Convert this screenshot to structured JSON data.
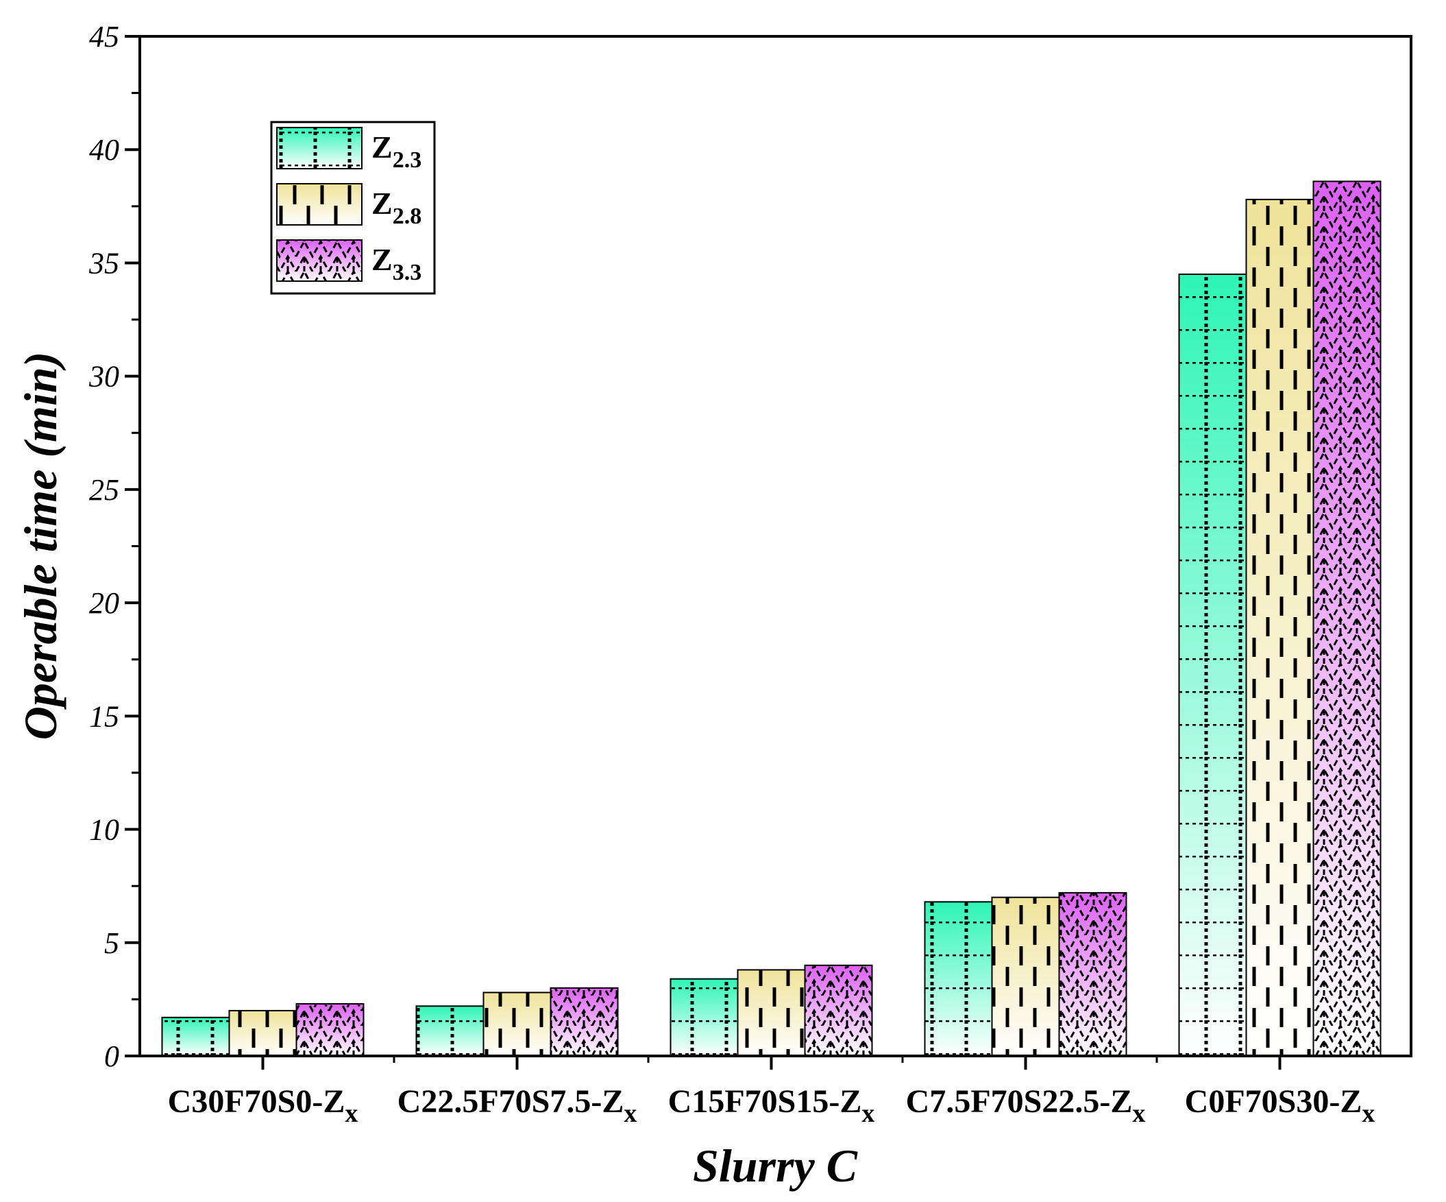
{
  "chart_data": {
    "type": "bar",
    "title": "",
    "xlabel": "Slurry C",
    "ylabel": "Operable time (min)",
    "ylim": [
      0,
      45
    ],
    "yticks": [
      0,
      5,
      10,
      15,
      20,
      25,
      30,
      35,
      40,
      45
    ],
    "categories": [
      {
        "base": "C30F70S0-Z",
        "sub": "x"
      },
      {
        "base": "C22.5F70S7.5-Z",
        "sub": "x"
      },
      {
        "base": "C15F70S15-Z",
        "sub": "x"
      },
      {
        "base": "C7.5F70S22.5-Z",
        "sub": "x"
      },
      {
        "base": "C0F70S30-Z",
        "sub": "x"
      }
    ],
    "series": [
      {
        "name": {
          "base": "Z",
          "sub": "2.3"
        },
        "values": [
          1.7,
          2.2,
          3.4,
          6.8,
          34.5
        ],
        "color": "#2ef5b4",
        "pattern": "dots-grid"
      },
      {
        "name": {
          "base": "Z",
          "sub": "2.8"
        },
        "values": [
          2.0,
          2.8,
          3.8,
          7.0,
          37.8
        ],
        "color": "#efe39a",
        "pattern": "dashes"
      },
      {
        "name": {
          "base": "Z",
          "sub": "3.3"
        },
        "values": [
          2.3,
          3.0,
          4.0,
          7.2,
          38.6
        ],
        "color": "#dc60f2",
        "pattern": "scales"
      }
    ],
    "legend_position": "top-left",
    "grid": false
  }
}
